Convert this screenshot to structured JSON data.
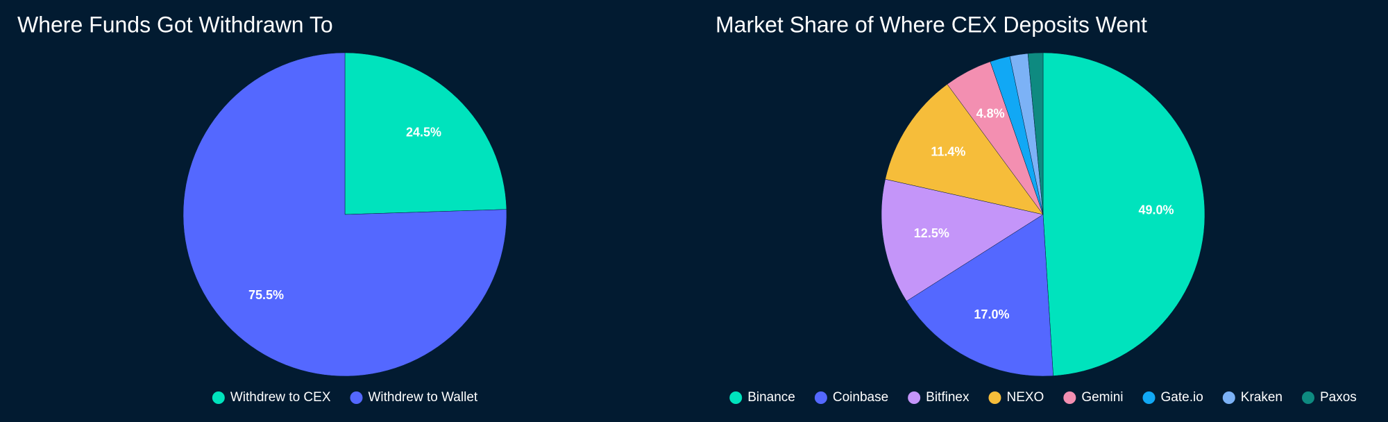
{
  "chart_data": [
    {
      "type": "pie",
      "title": "Where Funds Got Withdrawn To",
      "categories": [
        "Withdrew to CEX",
        "Withdrew to Wallet"
      ],
      "values": [
        24.5,
        75.5
      ],
      "value_labels": [
        "24.5%",
        "75.5%"
      ],
      "colors": [
        "#00e3bd",
        "#5468ff"
      ]
    },
    {
      "type": "pie",
      "title": "Market Share of Where CEX Deposits Went",
      "categories": [
        "Binance",
        "Coinbase",
        "Bitfinex",
        "NEXO",
        "Gemini",
        "Gate.io",
        "Kraken",
        "Paxos"
      ],
      "values": [
        49.0,
        17.0,
        12.5,
        11.4,
        4.8,
        2.0,
        1.8,
        1.5
      ],
      "value_labels": [
        "49.0%",
        "17.0%",
        "12.5%",
        "11.4%",
        "4.8%",
        null,
        null,
        null
      ],
      "colors": [
        "#00e3bd",
        "#5468ff",
        "#c495f9",
        "#f6bd3a",
        "#f38fb1",
        "#11a8f5",
        "#7cb2f6",
        "#0e8a80"
      ]
    }
  ]
}
